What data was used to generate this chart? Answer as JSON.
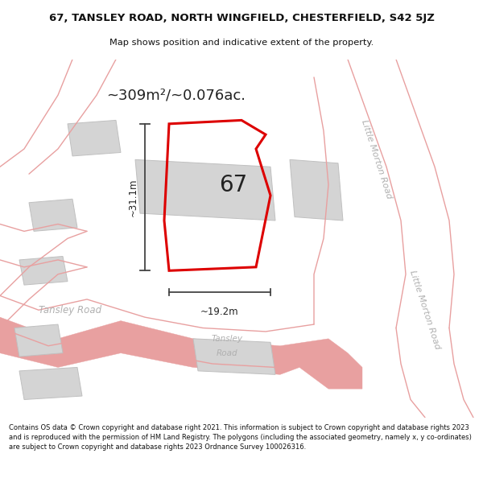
{
  "title": "67, TANSLEY ROAD, NORTH WINGFIELD, CHESTERFIELD, S42 5JZ",
  "subtitle": "Map shows position and indicative extent of the property.",
  "area_text": "~309m²/~0.076ac.",
  "dim_height": "~31.1m",
  "dim_width": "~19.2m",
  "property_number": "67",
  "footer": "Contains OS data © Crown copyright and database right 2021. This information is subject to Crown copyright and database rights 2023 and is reproduced with the permission of HM Land Registry. The polygons (including the associated geometry, namely x, y co-ordinates) are subject to Crown copyright and database rights 2023 Ordnance Survey 100026316.",
  "bg_color": "#f2ede8",
  "map_bg": "#f2ede8",
  "plot_outline_color": "#dd0000",
  "road_line_color": "#e8a0a0",
  "building_color": "#d4d4d4",
  "building_edge_color": "#c0c0c0",
  "road_label_color": "#b0b0b0",
  "dim_line_color": "#444444",
  "title_color": "#111111",
  "footer_color": "#111111",
  "white": "#ffffff"
}
